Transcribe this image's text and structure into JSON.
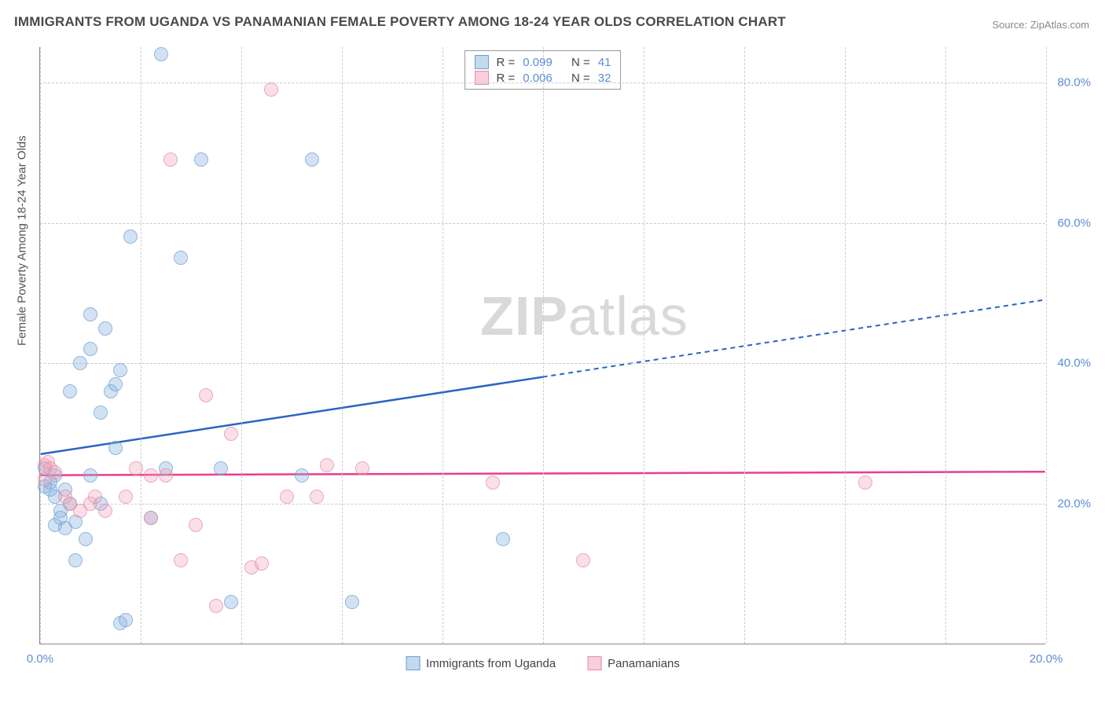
{
  "title": "IMMIGRANTS FROM UGANDA VS PANAMANIAN FEMALE POVERTY AMONG 18-24 YEAR OLDS CORRELATION CHART",
  "source": "Source: ZipAtlas.com",
  "ylabel": "Female Poverty Among 18-24 Year Olds",
  "watermark_a": "ZIP",
  "watermark_b": "atlas",
  "chart": {
    "type": "scatter",
    "xlim": [
      0,
      20
    ],
    "ylim": [
      0,
      85
    ],
    "xticks": [
      0,
      2,
      4,
      6,
      8,
      10,
      12,
      14,
      16,
      18,
      20
    ],
    "xtick_labels": {
      "0": "0.0%",
      "20": "20.0%"
    },
    "yticks": [
      20,
      40,
      60,
      80
    ],
    "ytick_labels": {
      "20": "20.0%",
      "40": "40.0%",
      "60": "60.0%",
      "80": "80.0%"
    },
    "grid_color": "#cccccc",
    "background_color": "#ffffff",
    "marker_size": 18,
    "series": [
      {
        "name": "Immigrants from Uganda",
        "color_fill": "rgba(137,178,224,0.5)",
        "color_stroke": "#6a9ed4",
        "trend_color": "#2a64c4",
        "R": "0.099",
        "N": "41",
        "trend": {
          "y_at_x0": 27,
          "y_at_x20": 49,
          "solid_until_x": 10
        },
        "points": [
          [
            0.1,
            25
          ],
          [
            0.2,
            22
          ],
          [
            0.3,
            24
          ],
          [
            0.2,
            23
          ],
          [
            0.1,
            22.5
          ],
          [
            0.4,
            19
          ],
          [
            0.3,
            21
          ],
          [
            0.5,
            22
          ],
          [
            0.6,
            20
          ],
          [
            0.4,
            18
          ],
          [
            0.3,
            17
          ],
          [
            0.7,
            17.5
          ],
          [
            0.5,
            16.5
          ],
          [
            1.0,
            24
          ],
          [
            1.2,
            20
          ],
          [
            1.5,
            28
          ],
          [
            1.2,
            33
          ],
          [
            1.4,
            36
          ],
          [
            0.8,
            40
          ],
          [
            1.0,
            42
          ],
          [
            1.3,
            45
          ],
          [
            1.0,
            47
          ],
          [
            1.6,
            39
          ],
          [
            0.6,
            36
          ],
          [
            1.8,
            58
          ],
          [
            1.5,
            37
          ],
          [
            2.4,
            84
          ],
          [
            2.8,
            55
          ],
          [
            3.2,
            69
          ],
          [
            3.6,
            25
          ],
          [
            3.8,
            6
          ],
          [
            2.2,
            18
          ],
          [
            2.5,
            25
          ],
          [
            5.4,
            69
          ],
          [
            5.2,
            24
          ],
          [
            6.2,
            6
          ],
          [
            1.6,
            3
          ],
          [
            1.7,
            3.5
          ],
          [
            0.9,
            15
          ],
          [
            0.7,
            12
          ],
          [
            9.2,
            15
          ]
        ]
      },
      {
        "name": "Panamanians",
        "color_fill": "rgba(240,160,185,0.45)",
        "color_stroke": "#e58ca8",
        "trend_color": "#e83e8c",
        "R": "0.006",
        "N": "32",
        "trend": {
          "y_at_x0": 24,
          "y_at_x20": 24.5,
          "solid_until_x": 20
        },
        "points": [
          [
            0.1,
            25.5
          ],
          [
            0.2,
            25
          ],
          [
            0.15,
            26
          ],
          [
            0.3,
            24.5
          ],
          [
            0.1,
            23.5
          ],
          [
            0.5,
            21
          ],
          [
            0.6,
            20
          ],
          [
            0.8,
            19
          ],
          [
            1.0,
            20
          ],
          [
            1.1,
            21
          ],
          [
            1.3,
            19
          ],
          [
            1.7,
            21
          ],
          [
            1.9,
            25
          ],
          [
            2.2,
            24
          ],
          [
            2.5,
            24
          ],
          [
            2.2,
            18
          ],
          [
            2.6,
            69
          ],
          [
            3.1,
            17
          ],
          [
            3.3,
            35.5
          ],
          [
            3.5,
            5.5
          ],
          [
            3.8,
            30
          ],
          [
            4.2,
            11
          ],
          [
            4.4,
            11.5
          ],
          [
            4.9,
            21
          ],
          [
            5.7,
            25.5
          ],
          [
            5.5,
            21
          ],
          [
            6.4,
            25
          ],
          [
            4.6,
            79
          ],
          [
            9.0,
            23
          ],
          [
            10.8,
            12
          ],
          [
            16.4,
            23
          ],
          [
            2.8,
            12
          ]
        ]
      }
    ]
  },
  "legend_bottom": {
    "a": "Immigrants from Uganda",
    "b": "Panamanians"
  },
  "legend_top": {
    "r_label": "R =",
    "n_label": "N ="
  }
}
